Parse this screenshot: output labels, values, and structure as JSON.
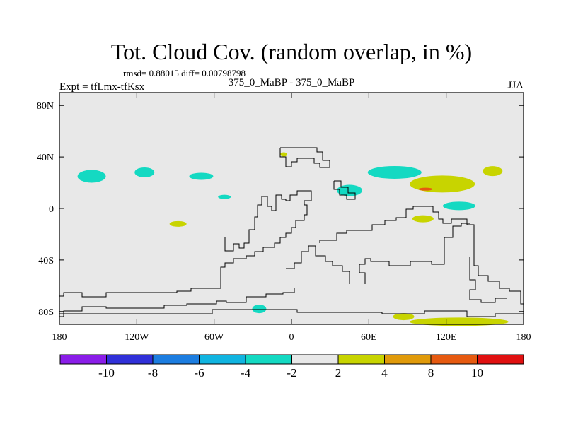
{
  "chart_data": {
    "type": "heatmap",
    "title": "Tot. Cloud Cov. (random overlap, in %)",
    "stats_line": "rmsd= 0.88015 diff= 0.00798798",
    "left_header": "Expt = tfLmx-tfKsx",
    "center_header": "375_0_MaBP - 375_0_MaBP",
    "right_header": "JJA",
    "xlim": [
      -180,
      180
    ],
    "ylim": [
      -90,
      90
    ],
    "x_ticks": [
      {
        "value": -180,
        "label": "180"
      },
      {
        "value": -120,
        "label": "120W"
      },
      {
        "value": -60,
        "label": "60W"
      },
      {
        "value": 0,
        "label": "0"
      },
      {
        "value": 60,
        "label": "60E"
      },
      {
        "value": 120,
        "label": "120E"
      },
      {
        "value": 180,
        "label": "180"
      }
    ],
    "y_ticks": [
      {
        "value": 80,
        "label": "80N"
      },
      {
        "value": 40,
        "label": "40N"
      },
      {
        "value": 0,
        "label": "0"
      },
      {
        "value": -40,
        "label": "40S"
      },
      {
        "value": -80,
        "label": "80S"
      }
    ],
    "colorbar": {
      "colors": [
        "#8a1de8",
        "#3030d8",
        "#1c7de0",
        "#10b4e0",
        "#14d9c2",
        "#e8e8e8",
        "#c8d400",
        "#e09a0a",
        "#e65a10",
        "#e01010"
      ],
      "labels": [
        "-10",
        "-8",
        "-6",
        "-4",
        "-2",
        "2",
        "4",
        "8",
        "10"
      ]
    },
    "anomalies": [
      {
        "lon": -155,
        "lat": 25,
        "value": -3
      },
      {
        "lon": -114,
        "lat": 28,
        "value": -3
      },
      {
        "lon": -70,
        "lat": 25,
        "value": -3
      },
      {
        "lon": -52,
        "lat": 9,
        "value": -3
      },
      {
        "lon": -88,
        "lat": -12,
        "value": 3
      },
      {
        "lon": -25,
        "lat": -78,
        "value": -3
      },
      {
        "lon": -6,
        "lat": 42,
        "value": 3
      },
      {
        "lon": 45,
        "lat": 14,
        "value": -3
      },
      {
        "lon": 80,
        "lat": 28,
        "value": -3
      },
      {
        "lon": 117,
        "lat": 19,
        "value": 3
      },
      {
        "lon": 104,
        "lat": 15,
        "value": 9
      },
      {
        "lon": 156,
        "lat": 29,
        "value": 3
      },
      {
        "lon": 130,
        "lat": 2,
        "value": -3
      },
      {
        "lon": 102,
        "lat": -8,
        "value": 3
      },
      {
        "lon": 87,
        "lat": -84,
        "value": 3
      },
      {
        "lon": 130,
        "lat": -88,
        "value": 3
      }
    ]
  }
}
